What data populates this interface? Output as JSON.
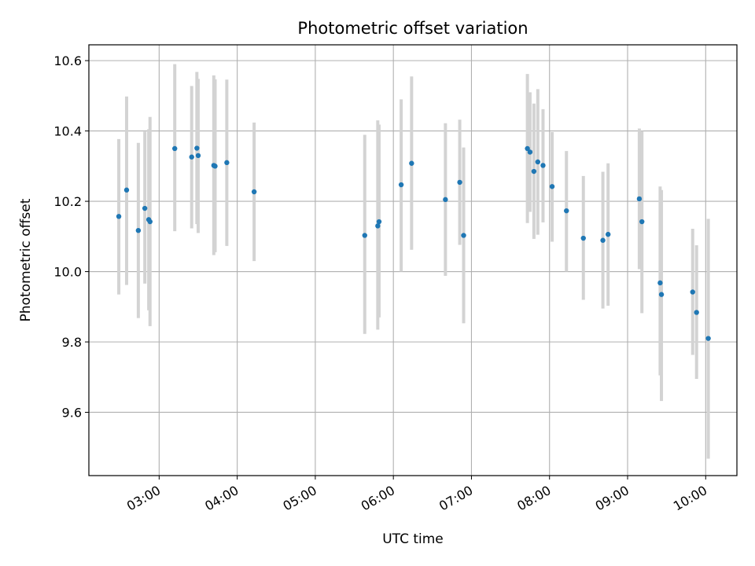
{
  "chart_data": {
    "type": "scatter",
    "title": "Photometric offset variation",
    "xlabel": "UTC time",
    "ylabel": "Photometric offset",
    "xlim_hours": [
      2.1,
      10.4
    ],
    "ylim": [
      9.42,
      10.645
    ],
    "grid": true,
    "legend": "none",
    "x_ticks": [
      {
        "hour": 3,
        "label": "03:00"
      },
      {
        "hour": 4,
        "label": "04:00"
      },
      {
        "hour": 5,
        "label": "05:00"
      },
      {
        "hour": 6,
        "label": "06:00"
      },
      {
        "hour": 7,
        "label": "07:00"
      },
      {
        "hour": 8,
        "label": "08:00"
      },
      {
        "hour": 9,
        "label": "09:00"
      },
      {
        "hour": 10,
        "label": "10:00"
      }
    ],
    "y_ticks": [
      {
        "value": 9.6,
        "label": "9.6"
      },
      {
        "value": 9.8,
        "label": "9.8"
      },
      {
        "value": 10.0,
        "label": "10.0"
      },
      {
        "value": 10.2,
        "label": "10.2"
      },
      {
        "value": 10.4,
        "label": "10.4"
      },
      {
        "value": 10.6,
        "label": "10.6"
      }
    ],
    "colors": {
      "point": "#1f77b4",
      "errorbar": "#d3d3d3",
      "grid": "#b0b0b0"
    },
    "points": [
      {
        "t": "02:29",
        "y": 10.157,
        "lo": 9.935,
        "hi": 10.377
      },
      {
        "t": "02:35",
        "y": 10.232,
        "lo": 9.962,
        "hi": 10.498
      },
      {
        "t": "02:44",
        "y": 10.117,
        "lo": 9.868,
        "hi": 10.366
      },
      {
        "t": "02:49",
        "y": 10.18,
        "lo": 9.966,
        "hi": 10.398
      },
      {
        "t": "02:52",
        "y": 10.148,
        "lo": 9.89,
        "hi": 10.405
      },
      {
        "t": "02:53",
        "y": 10.142,
        "lo": 9.845,
        "hi": 10.44
      },
      {
        "t": "03:12",
        "y": 10.35,
        "lo": 10.115,
        "hi": 10.59
      },
      {
        "t": "03:25",
        "y": 10.326,
        "lo": 10.123,
        "hi": 10.528
      },
      {
        "t": "03:29",
        "y": 10.351,
        "lo": 10.135,
        "hi": 10.568
      },
      {
        "t": "03:30",
        "y": 10.33,
        "lo": 10.11,
        "hi": 10.548
      },
      {
        "t": "03:42",
        "y": 10.302,
        "lo": 10.047,
        "hi": 10.558
      },
      {
        "t": "03:43",
        "y": 10.3,
        "lo": 10.055,
        "hi": 10.547
      },
      {
        "t": "03:52",
        "y": 10.31,
        "lo": 10.073,
        "hi": 10.546
      },
      {
        "t": "04:13",
        "y": 10.227,
        "lo": 10.03,
        "hi": 10.424
      },
      {
        "t": "05:38",
        "y": 10.103,
        "lo": 9.823,
        "hi": 10.389
      },
      {
        "t": "05:48",
        "y": 10.13,
        "lo": 9.835,
        "hi": 10.43
      },
      {
        "t": "05:49",
        "y": 10.142,
        "lo": 9.87,
        "hi": 10.418
      },
      {
        "t": "06:06",
        "y": 10.247,
        "lo": 10.0,
        "hi": 10.49
      },
      {
        "t": "06:14",
        "y": 10.308,
        "lo": 10.062,
        "hi": 10.555
      },
      {
        "t": "06:40",
        "y": 10.205,
        "lo": 9.988,
        "hi": 10.422
      },
      {
        "t": "06:51",
        "y": 10.254,
        "lo": 10.076,
        "hi": 10.432
      },
      {
        "t": "06:54",
        "y": 10.103,
        "lo": 9.853,
        "hi": 10.353
      },
      {
        "t": "07:43",
        "y": 10.35,
        "lo": 10.138,
        "hi": 10.562
      },
      {
        "t": "07:45",
        "y": 10.34,
        "lo": 10.17,
        "hi": 10.51
      },
      {
        "t": "07:48",
        "y": 10.285,
        "lo": 10.093,
        "hi": 10.478
      },
      {
        "t": "07:51",
        "y": 10.312,
        "lo": 10.105,
        "hi": 10.519
      },
      {
        "t": "07:55",
        "y": 10.302,
        "lo": 10.14,
        "hi": 10.462
      },
      {
        "t": "08:02",
        "y": 10.242,
        "lo": 10.085,
        "hi": 10.397
      },
      {
        "t": "08:13",
        "y": 10.173,
        "lo": 10.0,
        "hi": 10.343
      },
      {
        "t": "08:26",
        "y": 10.095,
        "lo": 9.92,
        "hi": 10.272
      },
      {
        "t": "08:41",
        "y": 10.089,
        "lo": 9.895,
        "hi": 10.284
      },
      {
        "t": "08:45",
        "y": 10.106,
        "lo": 9.903,
        "hi": 10.308
      },
      {
        "t": "09:09",
        "y": 10.207,
        "lo": 10.007,
        "hi": 10.407
      },
      {
        "t": "09:11",
        "y": 10.142,
        "lo": 9.882,
        "hi": 10.4
      },
      {
        "t": "09:25",
        "y": 9.968,
        "lo": 9.705,
        "hi": 10.242
      },
      {
        "t": "09:26",
        "y": 9.935,
        "lo": 9.632,
        "hi": 10.232
      },
      {
        "t": "09:50",
        "y": 9.942,
        "lo": 9.763,
        "hi": 10.122
      },
      {
        "t": "09:53",
        "y": 9.884,
        "lo": 9.695,
        "hi": 10.075
      },
      {
        "t": "10:02",
        "y": 9.81,
        "lo": 9.468,
        "hi": 10.15
      }
    ]
  }
}
